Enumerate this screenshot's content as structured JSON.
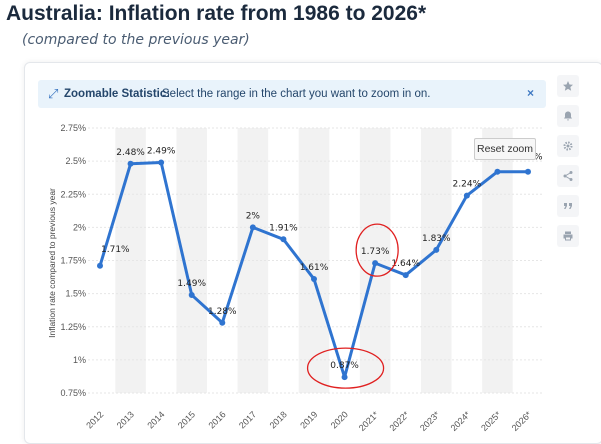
{
  "header": {
    "title": "Australia: Inflation rate from 1986 to 2026*",
    "subtitle": "(compared to the previous year)"
  },
  "zoom_banner": {
    "icon": "expand-arrows-icon",
    "label": "Zoomable Statistic:",
    "text": "Select the range in the chart you want to zoom in on.",
    "close": "×"
  },
  "toolbar": {
    "icons": [
      "star-icon",
      "bell-icon",
      "gear-icon",
      "share-icon",
      "quote-icon",
      "print-icon"
    ]
  },
  "reset_zoom_label": "Reset zoom",
  "colors": {
    "line": "#2f74d0",
    "highlight_circle": "#e02020",
    "band": "#f2f2f2"
  },
  "chart_data": {
    "type": "line",
    "ylabel": "Inflation rate compared to previous year",
    "ylim": [
      0.75,
      2.75
    ],
    "yticks": [
      "0.75%",
      "1%",
      "1.25%",
      "1.5%",
      "1.75%",
      "2%",
      "2.25%",
      "2.5%",
      "2.75%"
    ],
    "ytick_values": [
      0.75,
      1,
      1.25,
      1.5,
      1.75,
      2,
      2.25,
      2.5,
      2.75
    ],
    "categories": [
      "2012",
      "2013",
      "2014",
      "2015",
      "2016",
      "2017",
      "2018",
      "2019",
      "2020",
      "2021*",
      "2022*",
      "2023*",
      "2024*",
      "2025*",
      "2026*"
    ],
    "values": [
      1.71,
      2.48,
      2.49,
      1.49,
      1.28,
      2.0,
      1.91,
      1.61,
      0.87,
      1.73,
      1.64,
      1.83,
      2.24,
      2.42,
      2.42
    ],
    "data_labels": [
      "1.71%",
      "2.48%",
      "2.49%",
      "1.49%",
      "1.28%",
      "2%",
      "1.91%",
      "1.61%",
      "0.87%",
      "1.73%",
      "1.64%",
      "1.83%",
      "2.24%",
      "",
      "%"
    ],
    "grid": true,
    "highlighted_points": [
      "2020",
      "2021*"
    ]
  }
}
